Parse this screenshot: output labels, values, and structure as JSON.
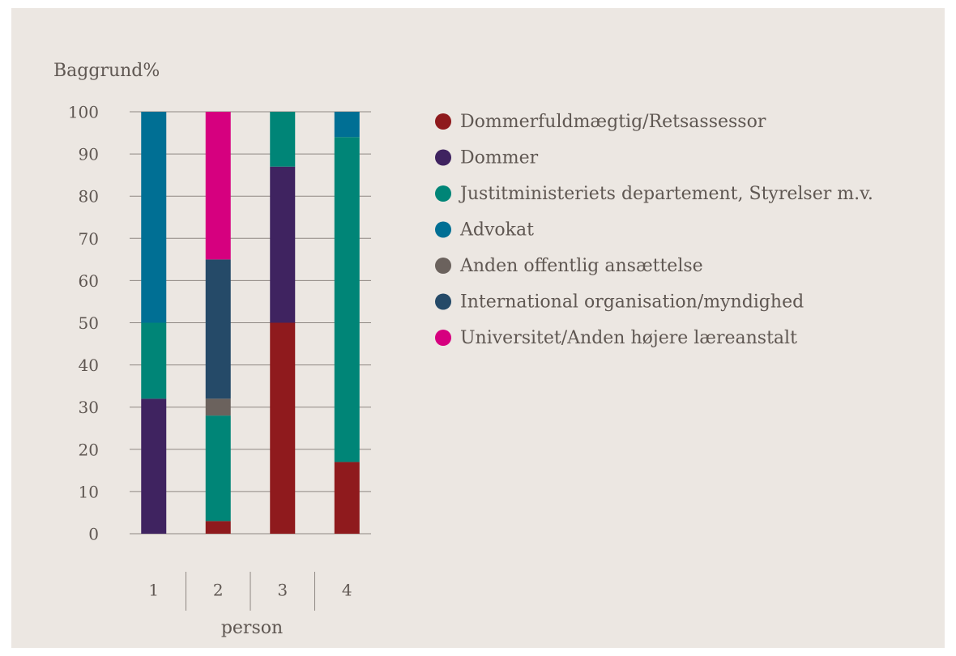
{
  "chart_data": {
    "type": "stacked_bar",
    "title": "Baggrund%",
    "x_label": "person",
    "categories": [
      "1",
      "2",
      "3",
      "4"
    ],
    "series": [
      {
        "name": "Dommerfuldmægtig/Retsassessor",
        "color": "#8f1a1d",
        "values": [
          0,
          3,
          50,
          17
        ]
      },
      {
        "name": "Dommer",
        "color": "#3f2360",
        "values": [
          32,
          0,
          37,
          0
        ]
      },
      {
        "name": "Justitministeriets departement, Styrelser m.v.",
        "color": "#008577",
        "values": [
          18,
          25,
          13,
          77
        ]
      },
      {
        "name": "Advokat",
        "color": "#006f94",
        "values": [
          50,
          0,
          0,
          6
        ]
      },
      {
        "name": "Anden offentlig ansættelse",
        "color": "#6b625d",
        "values": [
          0,
          4,
          0,
          0
        ]
      },
      {
        "name": "International organisation/myndighed",
        "color": "#254a68",
        "values": [
          0,
          33,
          0,
          0
        ]
      },
      {
        "name": "Universitet/Anden højere læreanstalt",
        "color": "#d6007f",
        "values": [
          0,
          35,
          0,
          0
        ]
      }
    ],
    "ylim": [
      0,
      100
    ],
    "yticks": [
      0,
      10,
      20,
      30,
      40,
      50,
      60,
      70,
      80,
      90,
      100
    ],
    "grid": true,
    "legend": "right"
  }
}
